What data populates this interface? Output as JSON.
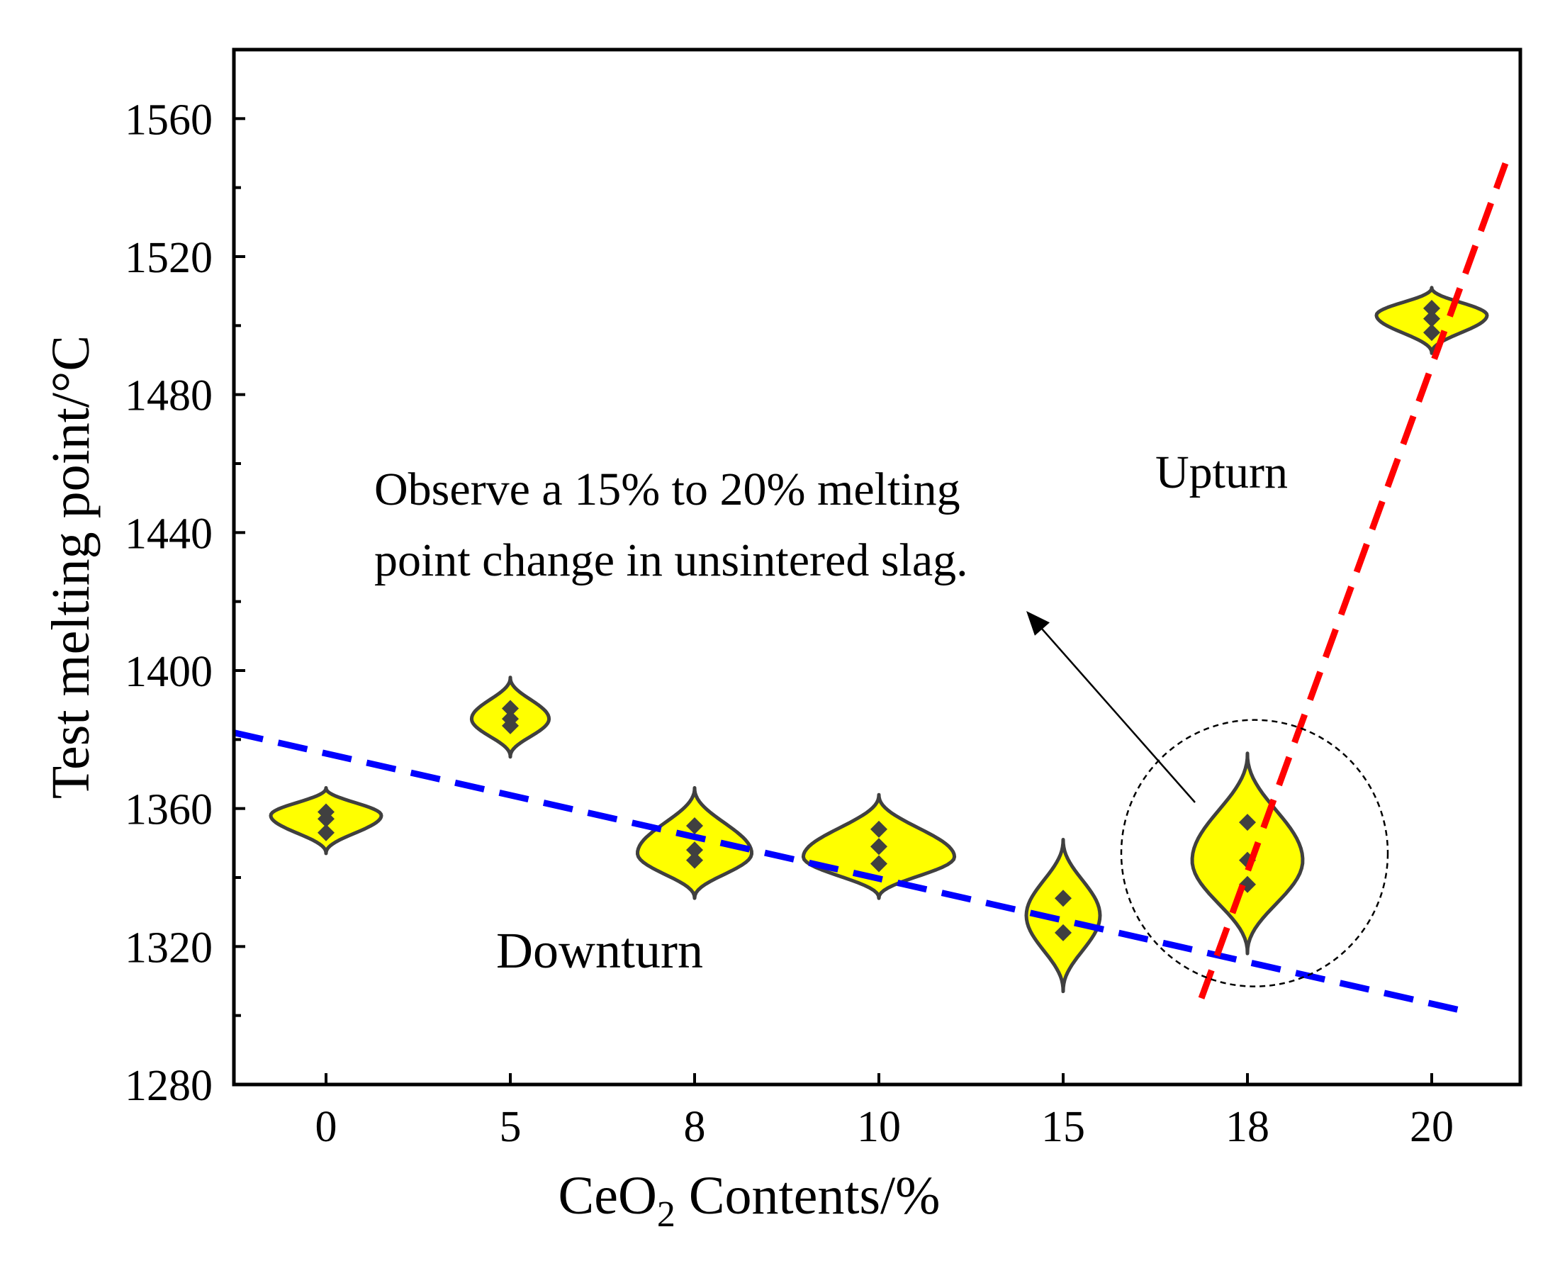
{
  "chart_data": {
    "type": "violin",
    "xlabel": "CeO",
    "xlabel_sub": "2",
    "xlabel_tail": " Contents/%",
    "ylabel": "Test melting point/°C",
    "ylim": [
      1280,
      1580
    ],
    "yticks": [
      1280,
      1320,
      1360,
      1400,
      1440,
      1480,
      1520,
      1560
    ],
    "categories": [
      "0",
      "5",
      "8",
      "10",
      "15",
      "18",
      "20"
    ],
    "violins": [
      {
        "category": "0",
        "center": 1358,
        "min": 1347,
        "max": 1366,
        "half_width": 0.3,
        "points": [
          1353,
          1357,
          1359
        ]
      },
      {
        "category": "5",
        "center": 1386,
        "min": 1375,
        "max": 1398,
        "half_width": 0.21,
        "points": [
          1384,
          1386,
          1389
        ]
      },
      {
        "category": "8",
        "center": 1347,
        "min": 1334,
        "max": 1366,
        "half_width": 0.31,
        "points": [
          1345,
          1348,
          1355
        ]
      },
      {
        "category": "10",
        "center": 1346,
        "min": 1334,
        "max": 1364,
        "half_width": 0.41,
        "points": [
          1344,
          1349,
          1354
        ]
      },
      {
        "category": "15",
        "center": 1329,
        "min": 1307,
        "max": 1351,
        "half_width": 0.2,
        "points": [
          1324,
          1334
        ]
      },
      {
        "category": "18",
        "center": 1345,
        "min": 1318,
        "max": 1376,
        "half_width": 0.3,
        "points": [
          1338,
          1345,
          1356
        ]
      },
      {
        "category": "20",
        "center": 1503,
        "min": 1492,
        "max": 1511,
        "half_width": 0.3,
        "points": [
          1498,
          1502,
          1505
        ]
      }
    ],
    "trend_lines": [
      {
        "name": "Downturn",
        "color": "#0000ff",
        "from": [
          -0.5,
          1382
        ],
        "to": [
          6.2,
          1301
        ]
      },
      {
        "name": "Upturn",
        "color": "#ff0000",
        "from": [
          4.75,
          1305
        ],
        "to": [
          6.4,
          1547
        ]
      }
    ],
    "annotations": {
      "downturn": "Downturn",
      "upturn": "Upturn",
      "note_line1": "Observe a 15% to 20% melting",
      "note_line2": "point change in unsintered slag."
    },
    "fill_color": "#ffff00",
    "outline_color": "#404040",
    "point_color": "#404040",
    "circle": {
      "category_index": 5,
      "value": 1345
    }
  }
}
